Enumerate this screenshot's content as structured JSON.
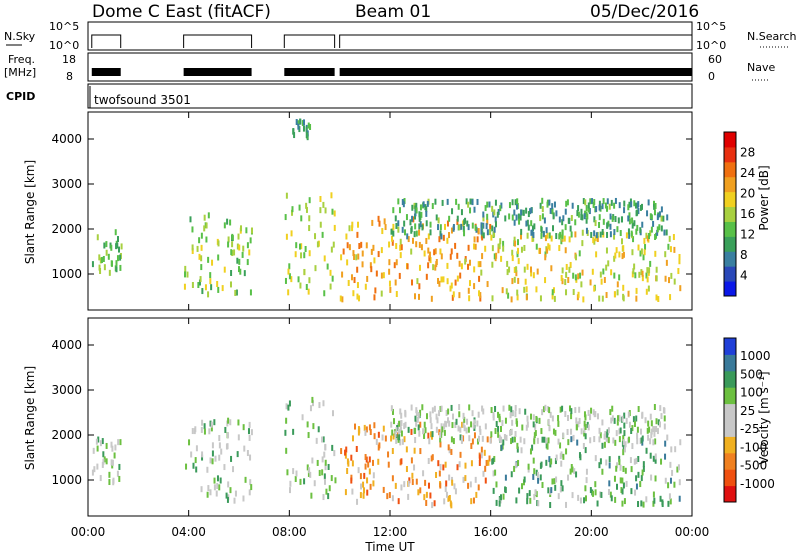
{
  "header": {
    "station": "Dome C East (fitACF)",
    "beam": "Beam 01",
    "date": "05/Dec/2016"
  },
  "strips": {
    "nsky_label": "N.Sky",
    "nsky_ticks": [
      "10^5",
      "10^0"
    ],
    "nsearch_label": "N.Search",
    "nsearch_ticks": [
      "10^5",
      "10^0"
    ],
    "freq_label_line1": "Freq.",
    "freq_label_line2": "[MHz]",
    "freq_ticks": [
      "18",
      "8"
    ],
    "nave_label": "Nave",
    "nave_ticks": [
      "60",
      "0"
    ],
    "cpid_label": "CPID",
    "cpid_value": "twofsound 3501"
  },
  "colors": {
    "power_scale": [
      "#0b18e8",
      "#2a48b8",
      "#3a7fa0",
      "#3aa05a",
      "#58c048",
      "#a8d040",
      "#f0d020",
      "#f0a020",
      "#f07010",
      "#e83010",
      "#e00000"
    ],
    "velocity_scale": [
      "#2040d8",
      "#3a7a9a",
      "#3a9a5a",
      "#6cc040",
      "#c8c8c8",
      "#c8c8c8",
      "#f0b020",
      "#f08020",
      "#f05010",
      "#e01010"
    ]
  },
  "chart_data": [
    {
      "type": "heatmap",
      "name": "power",
      "ylabel": "Slant Range [km]",
      "yticks": [
        "4000",
        "3000",
        "2000",
        "1000"
      ],
      "ylim": [
        200,
        4600
      ],
      "colorbar_label": "Power [dB]",
      "colorbar_ticks": [
        "28",
        "24",
        "20",
        "16",
        "12",
        "8",
        "4"
      ],
      "colorbar_range": [
        0,
        32
      ],
      "scatter_bands": [
        {
          "t0": 0.15,
          "t1": 1.3,
          "r0": 1000,
          "r1": 2000,
          "level": 13
        },
        {
          "t0": 3.8,
          "t1": 6.5,
          "r0": 600,
          "r1": 2400,
          "level": 14
        },
        {
          "t0": 7.8,
          "t1": 9.8,
          "r0": 600,
          "r1": 2900,
          "level": 16
        },
        {
          "t0": 8.1,
          "t1": 8.8,
          "r0": 4100,
          "r1": 4500,
          "level": 10
        },
        {
          "t0": 10.0,
          "t1": 16.0,
          "r0": 500,
          "r1": 2300,
          "level": 22
        },
        {
          "t0": 16.0,
          "t1": 23.5,
          "r0": 500,
          "r1": 2000,
          "level": 18
        },
        {
          "t0": 12.0,
          "t1": 23.0,
          "r0": 1900,
          "r1": 2700,
          "level": 10
        }
      ]
    },
    {
      "type": "heatmap",
      "name": "velocity",
      "ylabel": "Slant Range [km]",
      "yticks": [
        "4000",
        "3000",
        "2000",
        "1000"
      ],
      "ylim": [
        200,
        4600
      ],
      "colorbar_label": "Velocity [m s⁻¹]",
      "colorbar_ticks": [
        "1000",
        "500",
        "100",
        "25",
        "-25",
        "-100",
        "-500",
        "-1000"
      ],
      "scatter_bands": [
        {
          "t0": 0.15,
          "t1": 1.3,
          "r0": 1000,
          "r1": 2000,
          "level": 4
        },
        {
          "t0": 3.8,
          "t1": 6.5,
          "r0": 600,
          "r1": 2400,
          "level": 4
        },
        {
          "t0": 7.8,
          "t1": 9.8,
          "r0": 600,
          "r1": 2900,
          "level": 4
        },
        {
          "t0": 10.0,
          "t1": 16.0,
          "r0": 500,
          "r1": 2300,
          "level": 7
        },
        {
          "t0": 16.0,
          "t1": 23.5,
          "r0": 500,
          "r1": 2000,
          "level": 3
        },
        {
          "t0": 12.0,
          "t1": 23.0,
          "r0": 1900,
          "r1": 2700,
          "level": 4
        }
      ]
    }
  ],
  "xaxis": {
    "label": "Time UT",
    "ticks": [
      "00:00",
      "04:00",
      "08:00",
      "12:00",
      "16:00",
      "20:00",
      "00:00"
    ],
    "range_hours": [
      0,
      24
    ]
  }
}
